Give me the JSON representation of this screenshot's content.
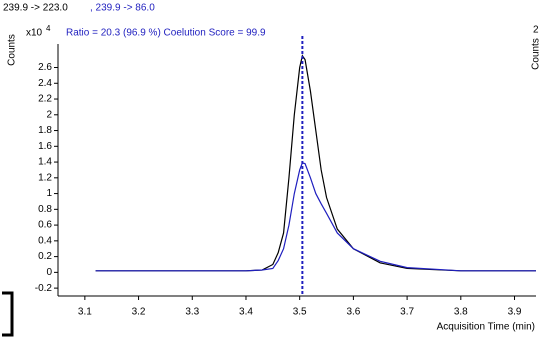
{
  "chart_data": {
    "type": "line",
    "title": "239.9 -> 223.0",
    "subtitle": ", 239.9 -> 86.0",
    "annotation": "Ratio = 20.3 (96.9 %) Coelution Score = 99.9",
    "y_label": "Counts",
    "y_multiplier": "x10",
    "y_exponent": "4",
    "x_label": "Acquisition Time (min)",
    "side_panel_texts": [
      "2",
      "Counts"
    ],
    "x": [
      3.12,
      3.2,
      3.3,
      3.4,
      3.43,
      3.45,
      3.46,
      3.47,
      3.48,
      3.49,
      3.5,
      3.505,
      3.51,
      3.52,
      3.53,
      3.54,
      3.55,
      3.57,
      3.6,
      3.65,
      3.7,
      3.8,
      3.94
    ],
    "series": [
      {
        "name": "239.9 -> 223.0",
        "color": "#000000",
        "values": [
          0.02,
          0.02,
          0.02,
          0.02,
          0.03,
          0.1,
          0.25,
          0.5,
          1.2,
          2.0,
          2.6,
          2.75,
          2.7,
          2.3,
          1.8,
          1.3,
          0.95,
          0.55,
          0.3,
          0.12,
          0.05,
          0.02,
          0.02
        ]
      },
      {
        "name": "239.9 -> 86.0",
        "color": "#1f1fbf",
        "values": [
          0.02,
          0.02,
          0.02,
          0.02,
          0.03,
          0.05,
          0.15,
          0.3,
          0.6,
          1.0,
          1.3,
          1.39,
          1.38,
          1.2,
          1.0,
          0.87,
          0.75,
          0.5,
          0.3,
          0.14,
          0.06,
          0.02,
          0.02
        ]
      }
    ],
    "retention_line_x": 3.505,
    "xlim": [
      3.05,
      3.94
    ],
    "ylim": [
      -0.3,
      3.0
    ],
    "xticks": [
      3.1,
      3.2,
      3.3,
      3.4,
      3.5,
      3.6,
      3.7,
      3.8,
      3.9
    ],
    "yticks": [
      -0.2,
      0,
      0.2,
      0.4,
      0.6,
      0.8,
      1,
      1.2,
      1.4,
      1.6,
      1.8,
      2,
      2.2,
      2.4,
      2.6
    ]
  }
}
